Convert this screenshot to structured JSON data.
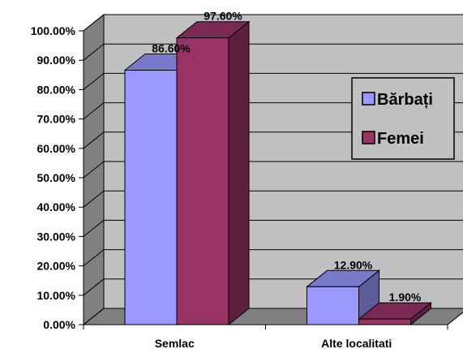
{
  "chart_data": {
    "type": "bar",
    "three_d": true,
    "categories": [
      "Semlac",
      "Alte localitati"
    ],
    "series": [
      {
        "name": "Bărbați",
        "values": [
          86.6,
          12.9
        ],
        "labels": [
          "86.60%",
          "12.90%"
        ],
        "color": "#9999FF"
      },
      {
        "name": "Femei",
        "values": [
          97.6,
          1.9
        ],
        "labels": [
          "97.60%",
          "1.90%"
        ],
        "color": "#993366"
      }
    ],
    "ylim": [
      0,
      100
    ],
    "yticks": [
      "0.00%",
      "10.00%",
      "20.00%",
      "30.00%",
      "40.00%",
      "50.00%",
      "60.00%",
      "70.00%",
      "80.00%",
      "90.00%",
      "100.00%"
    ],
    "grid": true,
    "legend_position": "right",
    "colors": {
      "wall": "#C0C0C0",
      "floor": "#808080",
      "side_wall": "#808080"
    }
  }
}
